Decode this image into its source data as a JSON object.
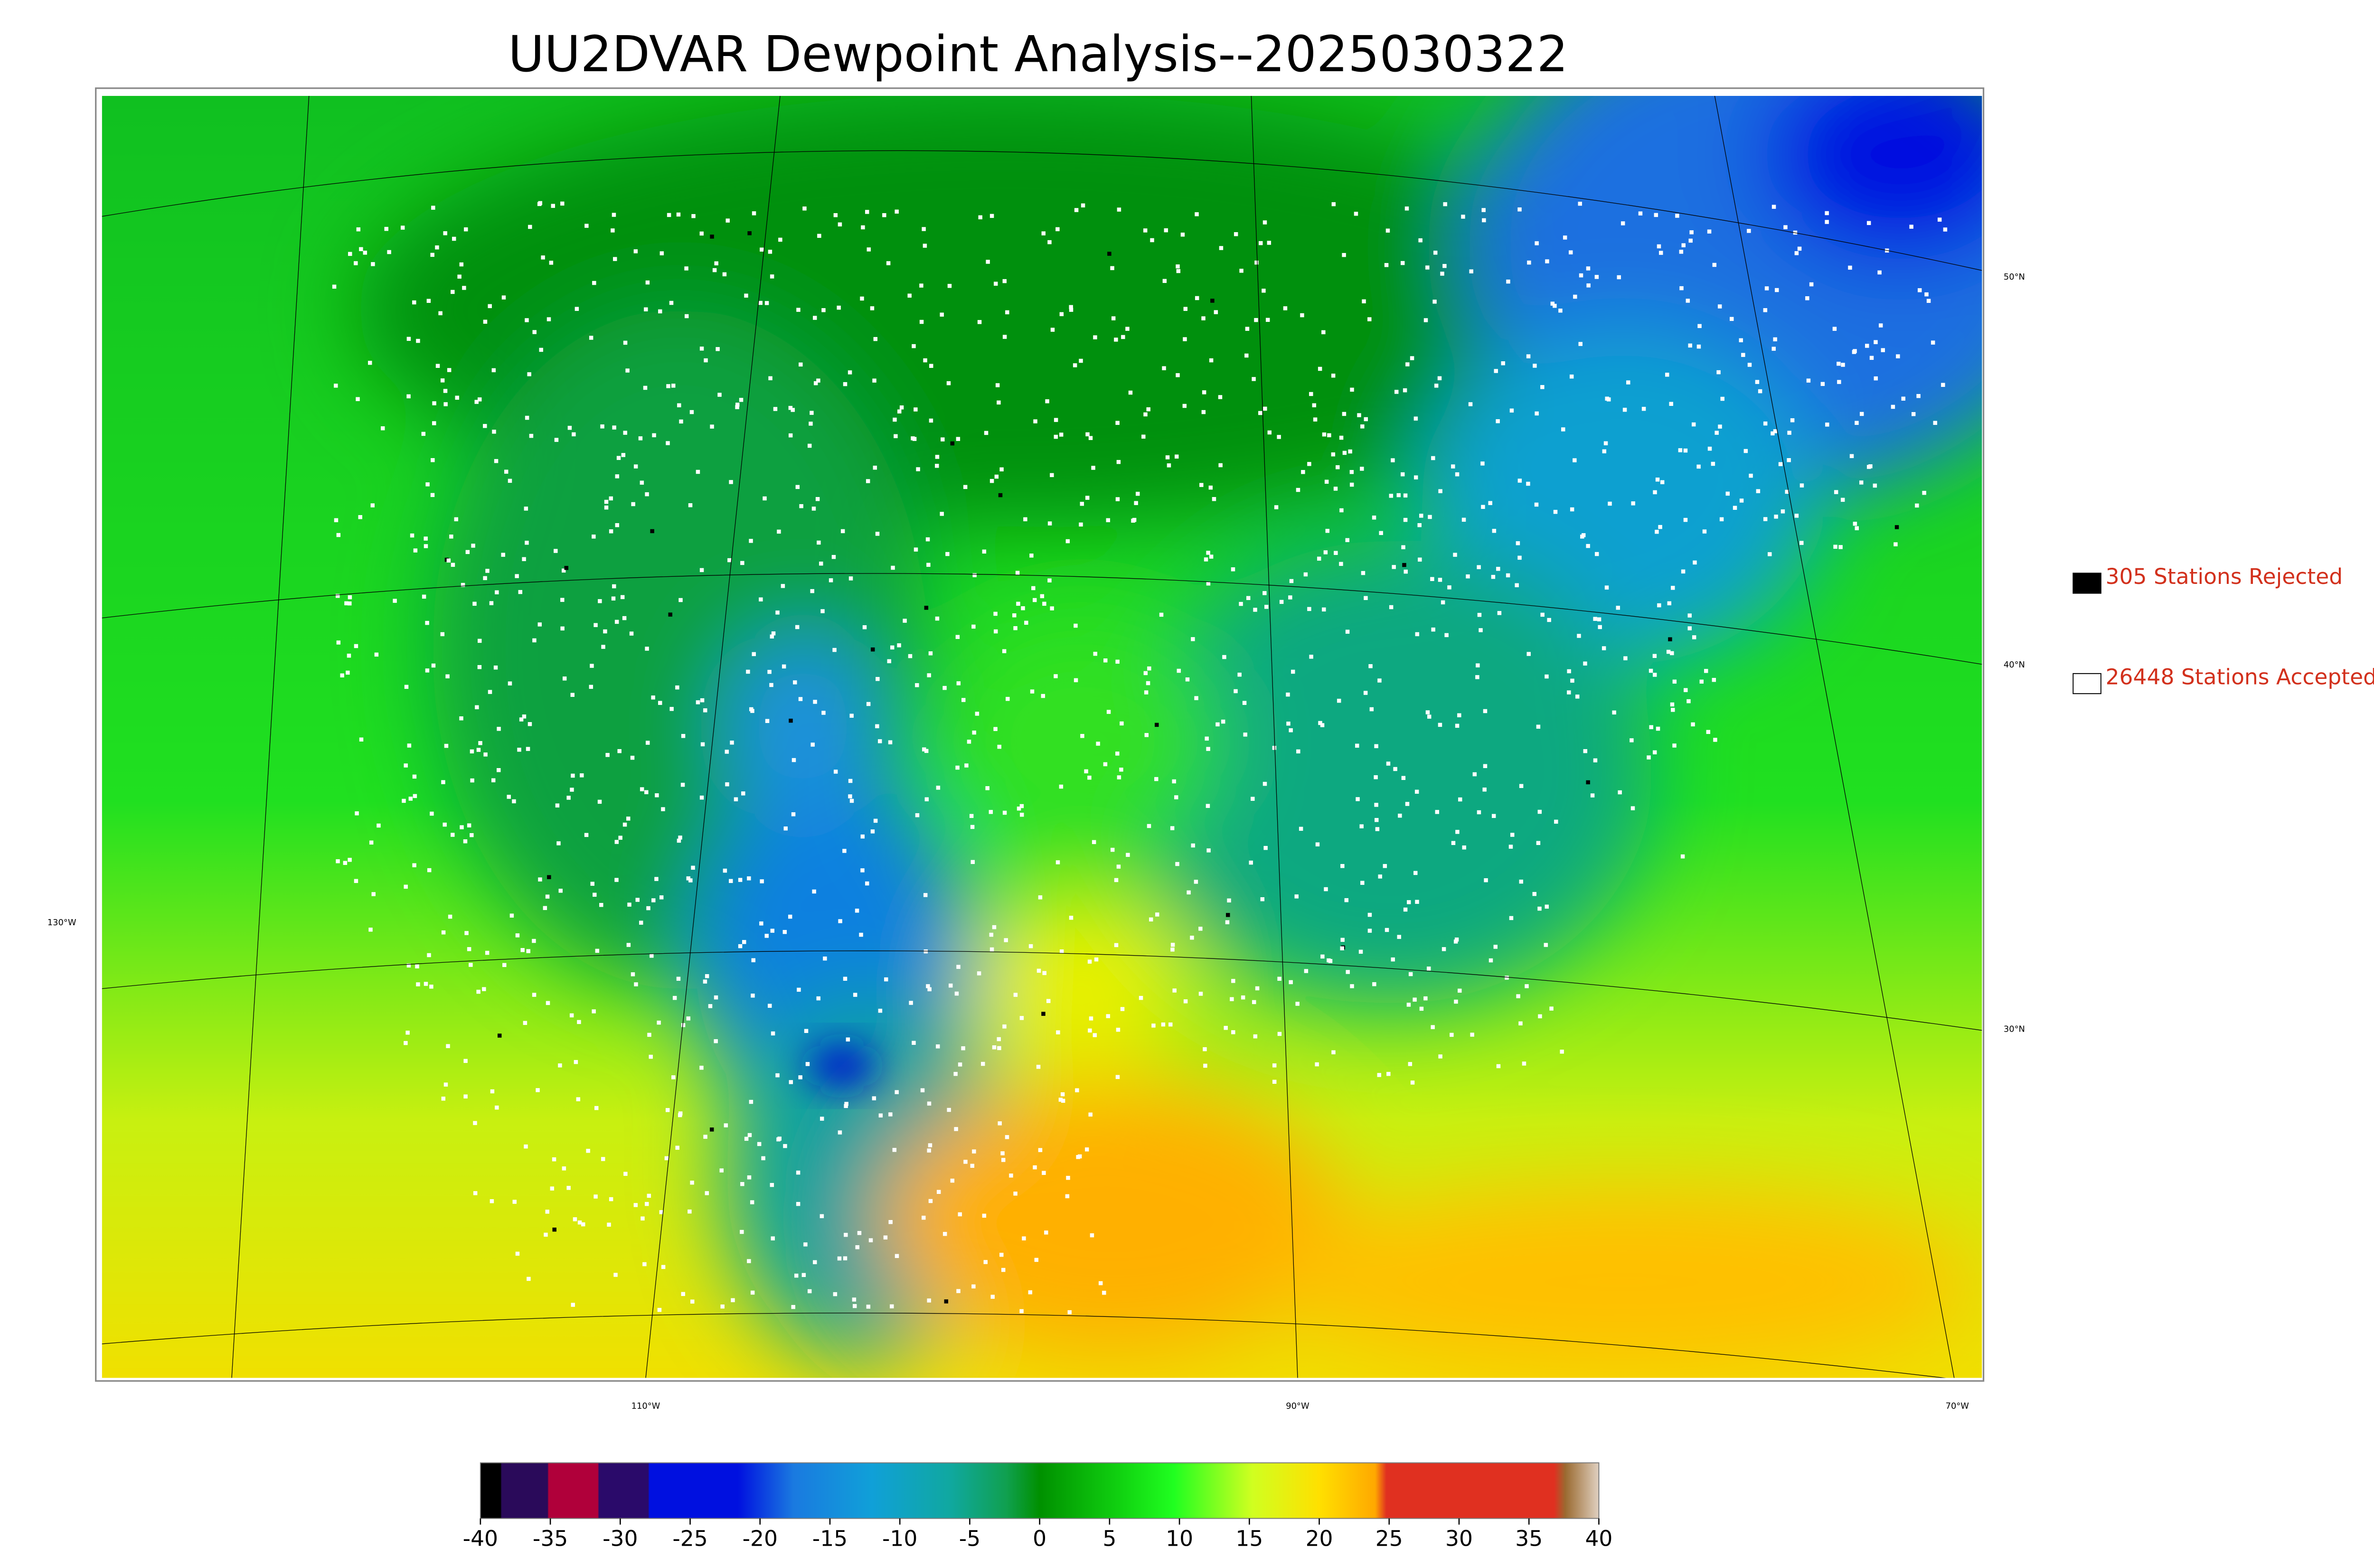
{
  "title": "UU2DVAR Dewpoint Analysis--2025030322",
  "graticule": {
    "longitudes": [
      "130°W",
      "110°W",
      "90°W",
      "70°W"
    ],
    "latitudes": [
      "50°N",
      "40°N",
      "30°N"
    ]
  },
  "legend": [
    "305 Stations Rejected",
    "26448 Stations Accepted"
  ],
  "colorbar": {
    "ticks": [
      -40,
      -35,
      -30,
      -25,
      -20,
      -15,
      -10,
      -5,
      0,
      5,
      10,
      15,
      20,
      25,
      30,
      35,
      40
    ]
  }
}
